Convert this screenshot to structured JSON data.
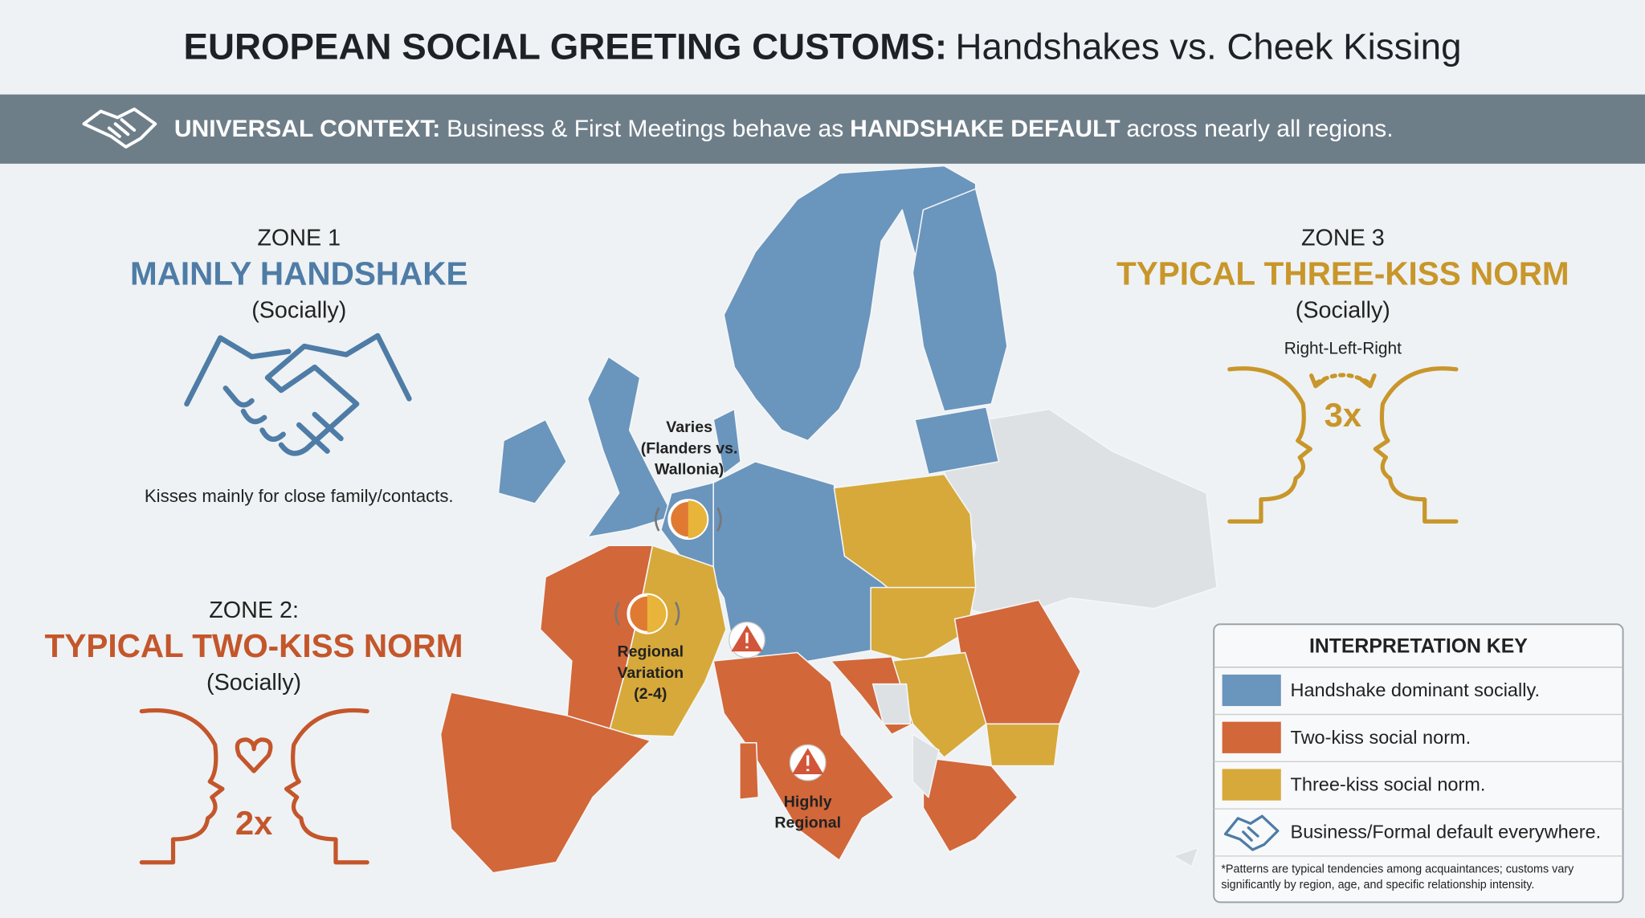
{
  "header": {
    "title_bold": "EUROPEAN SOCIAL GREETING CUSTOMS:",
    "title_rest": "Handshakes vs. Cheek Kissing"
  },
  "banner": {
    "label": "UNIVERSAL CONTEXT:",
    "text_1": "Business & First Meetings behave as",
    "emphasis": "HANDSHAKE DEFAULT",
    "text_2": "across nearly all regions."
  },
  "zones": [
    {
      "zone": "ZONE 1",
      "heading": "MAINLY HANDSHAKE",
      "qualifier": "(Socially)",
      "note": "Kisses mainly for close family/contacts.",
      "color": "#4e7ca6"
    },
    {
      "zone": "ZONE 2:",
      "heading": "TYPICAL TWO-KISS NORM",
      "qualifier": "(Socially)",
      "icon_label": "2x",
      "color": "#c4562b"
    },
    {
      "zone": "ZONE 3",
      "heading": "TYPICAL THREE-KISS NORM",
      "qualifier": "(Socially)",
      "direction": "Right-Left-Right",
      "icon_label": "3x",
      "color": "#c8962a"
    }
  ],
  "callouts": [
    {
      "lines": [
        "Varies",
        "(Flanders vs.",
        "Wallonia)"
      ]
    },
    {
      "lines": [
        "Regional",
        "Variation",
        "(2-4)"
      ]
    },
    {
      "lines": [
        "Highly",
        "Regional"
      ]
    }
  ],
  "legend": {
    "title": "INTERPRETATION KEY",
    "items": [
      {
        "label": "Handshake dominant socially.",
        "color": "#6a95bd"
      },
      {
        "label": "Two-kiss social norm.",
        "color": "#d2673a"
      },
      {
        "label": "Three-kiss social norm.",
        "color": "#d6a93a"
      },
      {
        "label": "Business/Formal default everywhere."
      }
    ],
    "footnote": [
      "*Patterns are typical tendencies among acquaintances; customs vary",
      "significantly by region, age, and specific relationship intensity."
    ]
  }
}
